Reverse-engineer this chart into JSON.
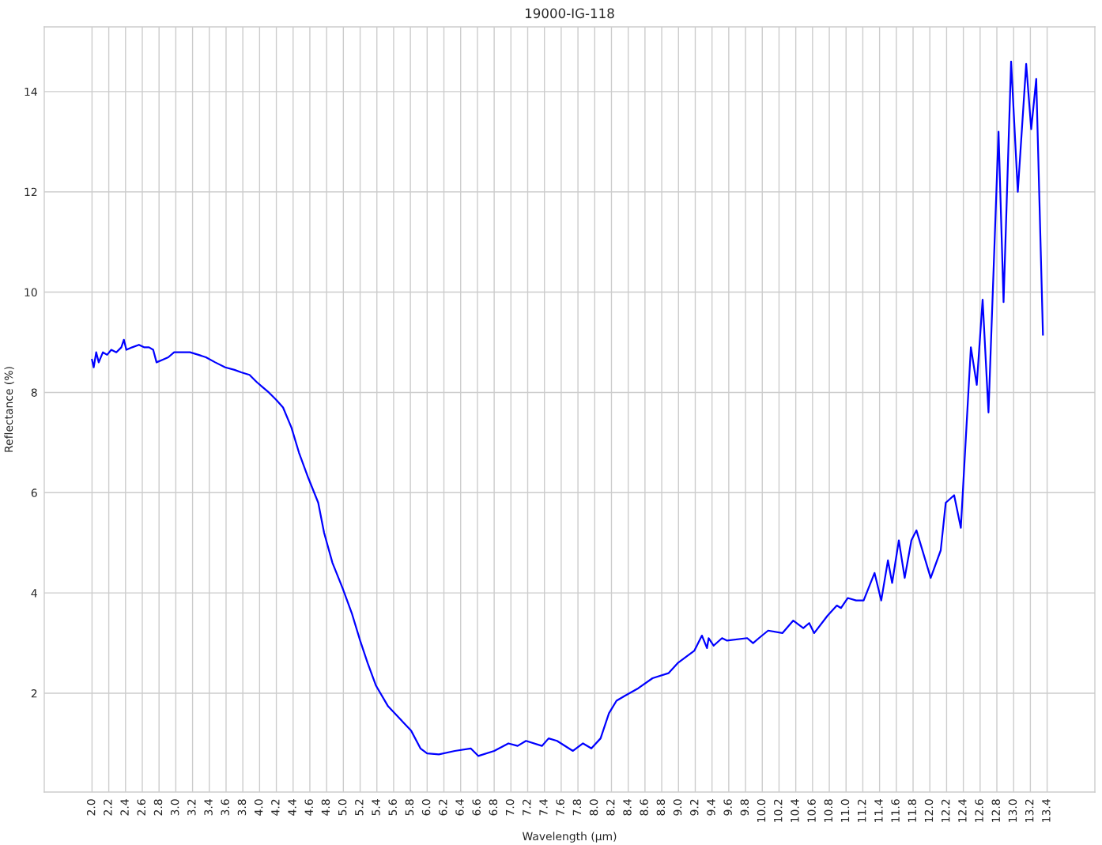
{
  "chart_data": {
    "type": "line",
    "title": "19000-IG-118",
    "xlabel": "Wavelength (μm)",
    "ylabel": "Reflectance (%)",
    "xlim": [
      1.43,
      13.97
    ],
    "ylim": [
      0.03,
      15.29
    ],
    "xticks": [
      {
        "value": 2,
        "label": "2.0"
      },
      2.2,
      2.4,
      2.6,
      2.8,
      {
        "value": 3,
        "label": "3.0"
      },
      3.2,
      3.4,
      3.6,
      3.8,
      {
        "value": 4,
        "label": "4.0"
      },
      4.2,
      4.4,
      4.6,
      4.8,
      {
        "value": 5,
        "label": "5.0"
      },
      5.2,
      5.4,
      5.6,
      5.8,
      {
        "value": 6,
        "label": "6.0"
      },
      6.2,
      6.4,
      6.6,
      6.8,
      {
        "value": 7,
        "label": "7.0"
      },
      7.2,
      7.4,
      7.6,
      7.8,
      {
        "value": 8,
        "label": "8.0"
      },
      8.2,
      8.4,
      8.6,
      8.8,
      {
        "value": 9,
        "label": "9.0"
      },
      9.2,
      9.4,
      9.6,
      9.8,
      {
        "value": 10,
        "label": "10.0"
      },
      10.2,
      10.4,
      10.6,
      10.8,
      {
        "value": 11,
        "label": "11.0"
      },
      11.2,
      11.4,
      11.6,
      11.8,
      {
        "value": 12,
        "label": "12.0"
      },
      12.2,
      12.4,
      12.6,
      12.8,
      {
        "value": 13,
        "label": "13.0"
      },
      13.2,
      13.4
    ],
    "yticks": [
      2,
      4,
      6,
      8,
      10,
      12,
      14
    ],
    "grid": true,
    "line_style": "solid",
    "marker": "none",
    "series": [
      {
        "color": "#0000ff",
        "x": [
          2.0,
          2.02,
          2.05,
          2.08,
          2.13,
          2.18,
          2.23,
          2.29,
          2.35,
          2.38,
          2.41,
          2.48,
          2.56,
          2.62,
          2.68,
          2.73,
          2.77,
          2.84,
          2.91,
          2.98,
          3.05,
          3.17,
          3.27,
          3.36,
          3.47,
          3.59,
          3.7,
          3.78,
          3.88,
          3.97,
          4.04,
          4.11,
          4.2,
          4.28,
          4.38,
          4.47,
          4.58,
          4.7,
          4.77,
          4.87,
          4.99,
          5.1,
          5.2,
          5.29,
          5.39,
          5.53,
          5.67,
          5.81,
          5.92,
          6.0,
          6.14,
          6.33,
          6.52,
          6.61,
          6.8,
          6.97,
          7.08,
          7.18,
          7.37,
          7.45,
          7.55,
          7.74,
          7.86,
          7.96,
          8.07,
          8.17,
          8.26,
          8.36,
          8.52,
          8.69,
          8.88,
          8.99,
          9.19,
          9.28,
          9.34,
          9.36,
          9.42,
          9.52,
          9.58,
          9.82,
          9.89,
          9.96,
          10.07,
          10.24,
          10.37,
          10.49,
          10.56,
          10.62,
          10.78,
          10.89,
          10.94,
          11.02,
          11.12,
          11.21,
          11.34,
          11.42,
          11.5,
          11.55,
          11.63,
          11.7,
          11.78,
          11.84,
          12.01,
          12.13,
          12.19,
          12.29,
          12.37,
          12.49,
          12.56,
          12.63,
          12.7,
          12.82,
          12.88,
          12.97,
          13.05,
          13.15,
          13.21,
          13.27,
          13.35
        ],
        "values": [
          8.65,
          8.5,
          8.8,
          8.6,
          8.8,
          8.75,
          8.85,
          8.8,
          8.9,
          9.05,
          8.85,
          8.9,
          8.95,
          8.9,
          8.9,
          8.85,
          8.6,
          8.65,
          8.7,
          8.8,
          8.8,
          8.8,
          8.75,
          8.7,
          8.6,
          8.5,
          8.45,
          8.4,
          8.35,
          8.2,
          8.1,
          8.0,
          7.85,
          7.7,
          7.3,
          6.8,
          6.3,
          5.8,
          5.2,
          4.6,
          4.1,
          3.6,
          3.05,
          2.6,
          2.15,
          1.75,
          1.5,
          1.25,
          0.9,
          0.8,
          0.78,
          0.85,
          0.9,
          0.75,
          0.85,
          1.0,
          0.95,
          1.05,
          0.95,
          1.1,
          1.05,
          0.85,
          1.0,
          0.9,
          1.1,
          1.6,
          1.85,
          1.95,
          2.1,
          2.3,
          2.4,
          2.6,
          2.85,
          3.15,
          2.9,
          3.1,
          2.95,
          3.1,
          3.05,
          3.1,
          3.0,
          3.1,
          3.25,
          3.2,
          3.45,
          3.3,
          3.4,
          3.2,
          3.55,
          3.75,
          3.7,
          3.9,
          3.85,
          3.85,
          4.4,
          3.85,
          4.65,
          4.2,
          5.05,
          4.3,
          5.05,
          5.25,
          4.3,
          4.85,
          5.8,
          5.95,
          5.3,
          8.9,
          8.15,
          9.85,
          7.6,
          13.2,
          9.8,
          14.6,
          12.0,
          14.55,
          13.25,
          14.25,
          9.15
        ]
      }
    ]
  }
}
